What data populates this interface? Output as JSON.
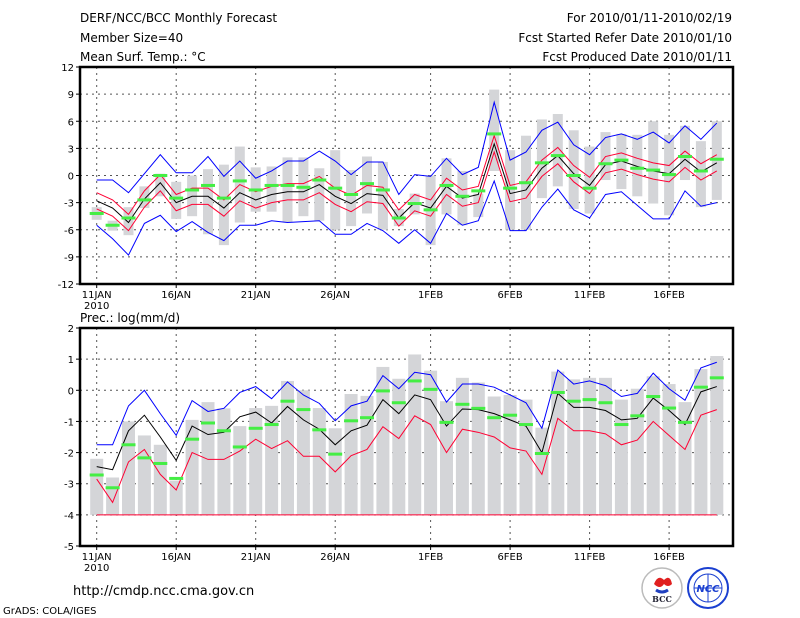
{
  "header": {
    "title": "DERF/NCC/BCC Monthly Forecast",
    "member_size": "Member Size=40",
    "variable": "Mean Surf. Temp.: °C",
    "period": "For 2010/01/11-2010/02/19",
    "start_date": "Fcst Started Refer Date 2010/01/10",
    "produced_date": "Fcst Produced Date 2010/01/11"
  },
  "footer": {
    "url": "http://cmdp.ncc.cma.gov.cn",
    "credit": "GrADS: COLA/IGES",
    "logo_bcc": "BCC",
    "logo_ncc": "NCC"
  },
  "colors": {
    "max": "#0000ff",
    "mean": "#000000",
    "spread": "#ff0033",
    "obs": "#44ee44",
    "range": "#d4d5d8"
  },
  "chart_data": [
    {
      "type": "line",
      "title": "Mean Surf. Temp.: °C",
      "ylim": [
        -12,
        12
      ],
      "yticks": [
        "12",
        "9",
        "6",
        "3",
        "0",
        "-3",
        "-6",
        "-9",
        "-12"
      ],
      "ytick_values": [
        12,
        9,
        6,
        3,
        0,
        -3,
        -6,
        -9,
        -12
      ],
      "xticks": [
        {
          "day": 0,
          "label": "11JAN",
          "sub": "2010"
        },
        {
          "day": 5,
          "label": "16JAN"
        },
        {
          "day": 10,
          "label": "21JAN"
        },
        {
          "day": 15,
          "label": "26JAN"
        },
        {
          "day": 21,
          "label": "1FEB"
        },
        {
          "day": 26,
          "label": "6FEB"
        },
        {
          "day": 31,
          "label": "11FEB"
        },
        {
          "day": 36,
          "label": "16FEB"
        }
      ],
      "grid": true,
      "range_top": [
        -3.5,
        -5.0,
        -3.5,
        -1.2,
        0.2,
        -0.7,
        0,
        0.7,
        1.2,
        3.2,
        0.9,
        1.0,
        2.0,
        2.0,
        0.8,
        2.8,
        0.6,
        2.1,
        1.5,
        -3.7,
        -2.0,
        0,
        1.9,
        0.5,
        -2.0,
        9.5,
        2.8,
        4.4,
        6.2,
        6.8,
        5.0,
        3.2,
        4.8,
        4.6,
        4.5,
        6.0,
        4.5,
        5.5,
        3.8,
        6.0
      ],
      "range_bottom": [
        -4.9,
        -6.1,
        -6.6,
        -3.6,
        -2.3,
        -4.8,
        -4.5,
        -6.5,
        -7.7,
        -5.2,
        -4.0,
        -4.0,
        -5.2,
        -4.5,
        -5.0,
        -6.0,
        -5.6,
        -4.2,
        -6.0,
        -5.6,
        -4.3,
        -7.7,
        -4.3,
        -5.5,
        -4.6,
        0.5,
        -6.0,
        -6.0,
        -2.5,
        -1.2,
        -3.7,
        -4.2,
        -0.5,
        -1.5,
        -2.3,
        -3.1,
        -4.4,
        -0.5,
        -3.5,
        -2.7
      ],
      "max": [
        -0.5,
        -0.5,
        -1.9,
        0.2,
        2.3,
        0.3,
        0.3,
        2.1,
        -0.1,
        1.6,
        -0.3,
        0.5,
        1.6,
        1.6,
        2.7,
        1.6,
        0.1,
        1.5,
        1.5,
        -2.1,
        0.1,
        -0.1,
        1.9,
        0.1,
        0.9,
        8.1,
        1.7,
        2.6,
        5.0,
        5.9,
        3.4,
        2.3,
        4.2,
        4.6,
        4.0,
        4.8,
        3.6,
        5.5,
        4.0,
        5.8
      ],
      "min": [
        -5.5,
        -7.0,
        -8.8,
        -5.3,
        -4.4,
        -6.2,
        -5.1,
        -6.3,
        -7.2,
        -5.5,
        -5.5,
        -5.0,
        -5.2,
        -5.1,
        -5.0,
        -6.5,
        -6.5,
        -5.3,
        -6.1,
        -7.5,
        -6.0,
        -7.5,
        -4.2,
        -5.5,
        -5.0,
        -0.6,
        -6.1,
        -6.1,
        -3.5,
        -1.5,
        -3.8,
        -4.7,
        -2.1,
        -1.8,
        -3.3,
        -4.8,
        -4.8,
        -1.7,
        -3.4,
        -3.0
      ],
      "mean": [
        -2.8,
        -3.6,
        -5.2,
        -2.6,
        -0.8,
        -3.0,
        -2.3,
        -2.3,
        -3.6,
        -1.9,
        -2.7,
        -2.1,
        -1.8,
        -1.8,
        -1.0,
        -2.3,
        -3.1,
        -2.0,
        -2.2,
        -4.7,
        -3.0,
        -3.6,
        -1.2,
        -2.5,
        -2.1,
        3.5,
        -2.0,
        -1.6,
        0.8,
        2.2,
        0.2,
        -1.1,
        1.2,
        1.6,
        1.0,
        0.5,
        0.2,
        1.8,
        0.4,
        1.4
      ],
      "upper": [
        -1.9,
        -2.7,
        -4.3,
        -1.7,
        0.1,
        -2.1,
        -1.4,
        -1.4,
        -2.7,
        -1.0,
        -1.8,
        -1.2,
        -0.9,
        -0.9,
        -0.1,
        -1.4,
        -2.2,
        -1.1,
        -1.3,
        -3.8,
        -2.1,
        -2.7,
        -0.3,
        -1.6,
        -1.2,
        4.4,
        -1.1,
        -0.7,
        1.7,
        3.1,
        1.1,
        -0.2,
        2.1,
        2.5,
        1.9,
        1.4,
        1.1,
        2.7,
        1.3,
        2.3
      ],
      "lower": [
        -3.7,
        -4.5,
        -6.1,
        -3.5,
        -1.7,
        -3.9,
        -3.2,
        -3.2,
        -4.5,
        -2.8,
        -3.6,
        -3.0,
        -2.7,
        -2.7,
        -1.9,
        -3.2,
        -4.0,
        -2.9,
        -3.1,
        -5.6,
        -3.9,
        -4.5,
        -2.1,
        -3.4,
        -3.0,
        2.6,
        -2.9,
        -2.5,
        -0.1,
        1.3,
        -0.7,
        -2.0,
        0.3,
        0.7,
        0.1,
        -0.4,
        -0.7,
        0.9,
        -0.5,
        0.5
      ],
      "obs": [
        -4.2,
        -5.5,
        -4.7,
        -2.7,
        0,
        -2.5,
        -1.6,
        -1.1,
        -2.5,
        -0.6,
        -1.6,
        -1.1,
        -1.1,
        -1.3,
        -0.5,
        -1.4,
        -2.1,
        -0.9,
        -1.6,
        -4.7,
        -3.1,
        -3.8,
        -1.1,
        -2.3,
        -1.7,
        4.6,
        -1.4,
        -0.8,
        1.4,
        2.2,
        0,
        -1.4,
        1.3,
        1.7,
        0.8,
        0.6,
        0.1,
        2.1,
        0.5,
        1.8
      ]
    },
    {
      "type": "line",
      "title": "Prec.: log(mm/d)",
      "ylim": [
        -5,
        2
      ],
      "yticks": [
        "2",
        "1",
        "0",
        "-1",
        "-2",
        "-3",
        "-4",
        "-5"
      ],
      "ytick_values": [
        2,
        1,
        0,
        -1,
        -2,
        -3,
        -4,
        -5
      ],
      "xticks": [
        {
          "day": 0,
          "label": "11JAN",
          "sub": "2010"
        },
        {
          "day": 5,
          "label": "16JAN"
        },
        {
          "day": 10,
          "label": "21JAN"
        },
        {
          "day": 15,
          "label": "26JAN"
        },
        {
          "day": 21,
          "label": "1FEB"
        },
        {
          "day": 26,
          "label": "6FEB"
        },
        {
          "day": 31,
          "label": "11FEB"
        },
        {
          "day": 36,
          "label": "16FEB"
        }
      ],
      "grid": true,
      "range_top": [
        -2.2,
        -2.8,
        -1.0,
        -1.45,
        -1.75,
        -2.9,
        -0.95,
        -0.38,
        -0.58,
        -1.15,
        -0.57,
        -0.5,
        0.3,
        0.0,
        -0.57,
        -1.22,
        -0.12,
        -0.18,
        0.75,
        0.37,
        1.15,
        0.63,
        -0.35,
        0.4,
        0.25,
        -0.2,
        -0.15,
        -0.3,
        -1.2,
        0.6,
        0.35,
        0.4,
        0.4,
        -0.3,
        0.05,
        0.45,
        0.2,
        -0.38,
        0.68,
        1.1
      ],
      "range_bottom": [
        -4,
        -4,
        -4,
        -4,
        -4,
        -4,
        -4,
        -4,
        -4,
        -4,
        -4,
        -4,
        -4,
        -4,
        -4,
        -4,
        -4,
        -4,
        -4,
        -4,
        -4,
        -4,
        -4,
        -4,
        -4,
        -4,
        -4,
        -4,
        -4,
        -4,
        -4,
        -4,
        -4,
        -4,
        -4,
        -4,
        -4,
        -4,
        -4,
        -4
      ],
      "max": [
        -1.75,
        -1.75,
        -0.5,
        0.0,
        -0.75,
        -1.45,
        -0.33,
        -0.68,
        -0.58,
        -0.07,
        0.12,
        -0.27,
        0.27,
        -0.15,
        -0.42,
        -0.98,
        -0.5,
        -0.35,
        0.47,
        0.05,
        0.58,
        0.5,
        -0.38,
        0.2,
        0.2,
        0.1,
        -0.15,
        -0.4,
        -1.22,
        0.65,
        0.2,
        0.3,
        0.15,
        -0.2,
        -0.1,
        0.55,
        0.05,
        -0.32,
        0.72,
        0.9
      ],
      "mean": [
        -2.45,
        -2.55,
        -1.3,
        -0.8,
        -1.5,
        -2.25,
        -1.15,
        -1.42,
        -1.35,
        -0.85,
        -0.7,
        -1.05,
        -0.52,
        -0.95,
        -1.25,
        -1.75,
        -1.3,
        -1.12,
        -0.3,
        -0.75,
        -0.15,
        -0.3,
        -1.15,
        -0.6,
        -0.62,
        -0.75,
        -0.95,
        -1.15,
        -2.0,
        -0.1,
        -0.55,
        -0.55,
        -0.65,
        -0.95,
        -0.9,
        -0.25,
        -0.65,
        -1.1,
        -0.05,
        0.12
      ],
      "lower": [
        -2.85,
        -3.6,
        -2.3,
        -1.9,
        -2.7,
        -3.2,
        -2.0,
        -2.22,
        -2.22,
        -1.95,
        -1.57,
        -1.87,
        -1.62,
        -2.12,
        -2.12,
        -2.62,
        -2.1,
        -1.9,
        -1.17,
        -1.55,
        -0.82,
        -1.1,
        -2.0,
        -1.25,
        -1.35,
        -1.5,
        -1.85,
        -1.95,
        -2.7,
        -0.9,
        -1.3,
        -1.3,
        -1.4,
        -1.75,
        -1.6,
        -1.0,
        -1.45,
        -1.9,
        -0.8,
        -0.62
      ],
      "min": [
        -4,
        -4,
        -4,
        -4,
        -4,
        -4,
        -4,
        -4,
        -4,
        -4,
        -4,
        -4,
        -4,
        -4,
        -4,
        -4,
        -4,
        -4,
        -4,
        -4,
        -4,
        -4,
        -4,
        -4,
        -4,
        -4,
        -4,
        -4,
        -4,
        -4,
        -4,
        -4,
        -4,
        -4,
        -4,
        -4,
        -4,
        -4,
        -4,
        -4
      ],
      "obs": [
        -2.72,
        -3.13,
        -1.75,
        -2.17,
        -2.35,
        -2.83,
        -1.57,
        -1.05,
        -1.3,
        -1.82,
        -1.22,
        -1.1,
        -0.35,
        -0.62,
        -1.27,
        -2.05,
        -0.98,
        -0.88,
        -0.02,
        -0.4,
        0.3,
        0.03,
        -1.03,
        -0.45,
        -0.58,
        -0.88,
        -0.8,
        -1.1,
        -2.03,
        -0.07,
        -0.35,
        -0.3,
        -0.4,
        -1.1,
        -0.82,
        -0.2,
        -0.57,
        -1.03,
        0.1,
        0.4
      ]
    }
  ]
}
